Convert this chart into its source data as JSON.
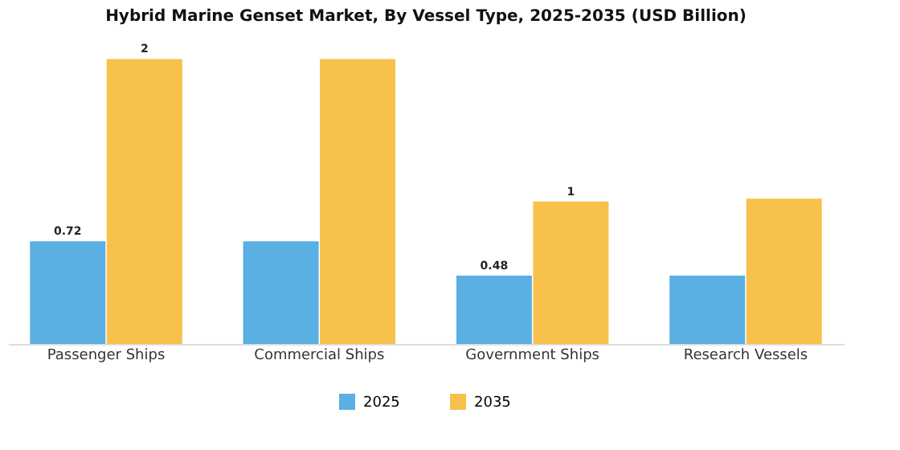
{
  "chart_data": {
    "type": "bar",
    "title": "Hybrid Marine Genset Market, By Vessel Type, 2025-2035 (USD Billion)",
    "categories": [
      "Passenger Ships",
      "Commercial Ships",
      "Government Ships",
      "Research Vessels"
    ],
    "series": [
      {
        "name": "2025",
        "color": "#5aafe3",
        "values": [
          0.72,
          0.72,
          0.48,
          0.48
        ],
        "value_labels": [
          "0.72",
          null,
          "0.48",
          null
        ]
      },
      {
        "name": "2035",
        "color": "#f7c14c",
        "values": [
          2,
          2,
          1,
          1.02
        ],
        "value_labels": [
          "2",
          null,
          "1",
          null
        ]
      }
    ],
    "legend": "bottom",
    "grid": false
  }
}
